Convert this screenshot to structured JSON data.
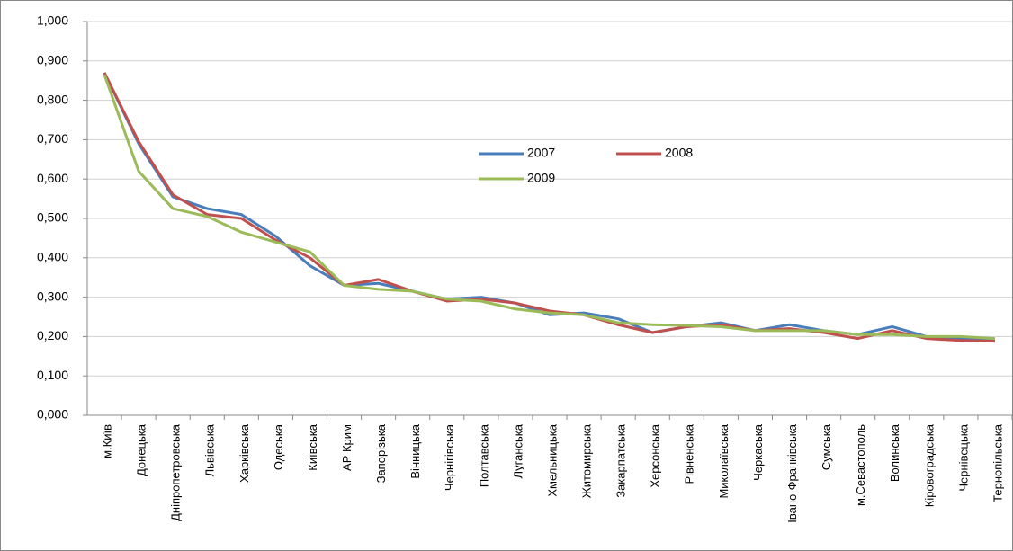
{
  "chart_data": {
    "type": "line",
    "categories": [
      "м.Київ",
      "Донецька",
      "Дніпропетровська",
      "Львівська",
      "Харківська",
      "Одеська",
      "Київська",
      "АР Крим",
      "Запорізька",
      "Вінницька",
      "Чернігівська",
      "Полтавська",
      "Луганська",
      "Хмельницька",
      "Житомирська",
      "Закарпатська",
      "Херсонська",
      "Рівненська",
      "Миколаївська",
      "Черкаська",
      "Івано-Франківська",
      "Сумська",
      "м.Севастополь",
      "Волинська",
      "Кіровоградська",
      "Чернівецька",
      "Тернопільська"
    ],
    "series": [
      {
        "name": "2007",
        "color": "#4a7ebb",
        "values": [
          0.87,
          0.69,
          0.555,
          0.525,
          0.51,
          0.455,
          0.38,
          0.33,
          0.335,
          0.315,
          0.295,
          0.3,
          0.285,
          0.255,
          0.26,
          0.245,
          0.21,
          0.225,
          0.235,
          0.215,
          0.23,
          0.215,
          0.205,
          0.225,
          0.2,
          0.195,
          0.19
        ]
      },
      {
        "name": "2008",
        "color": "#c0504d",
        "values": [
          0.87,
          0.695,
          0.56,
          0.51,
          0.5,
          0.445,
          0.4,
          0.33,
          0.345,
          0.315,
          0.29,
          0.295,
          0.285,
          0.265,
          0.255,
          0.23,
          0.21,
          0.225,
          0.23,
          0.215,
          0.22,
          0.21,
          0.195,
          0.215,
          0.195,
          0.19,
          0.188
        ]
      },
      {
        "name": "2009",
        "color": "#9bbb59",
        "values": [
          0.865,
          0.62,
          0.525,
          0.505,
          0.465,
          0.44,
          0.415,
          0.33,
          0.32,
          0.315,
          0.295,
          0.29,
          0.27,
          0.26,
          0.255,
          0.235,
          0.23,
          0.228,
          0.225,
          0.215,
          0.215,
          0.215,
          0.205,
          0.205,
          0.2,
          0.2,
          0.195
        ]
      }
    ],
    "ylim": [
      0,
      1
    ],
    "yticks": [
      {
        "value": 0,
        "label": "0,000"
      },
      {
        "value": 0.1,
        "label": "0,100"
      },
      {
        "value": 0.2,
        "label": "0,200"
      },
      {
        "value": 0.3,
        "label": "0,300"
      },
      {
        "value": 0.4,
        "label": "0,400"
      },
      {
        "value": 0.5,
        "label": "0,500"
      },
      {
        "value": 0.6,
        "label": "0,600"
      },
      {
        "value": 0.7,
        "label": "0,700"
      },
      {
        "value": 0.8,
        "label": "0,800"
      },
      {
        "value": 0.9,
        "label": "0,900"
      },
      {
        "value": 1,
        "label": "1,000"
      }
    ],
    "grid": true
  }
}
